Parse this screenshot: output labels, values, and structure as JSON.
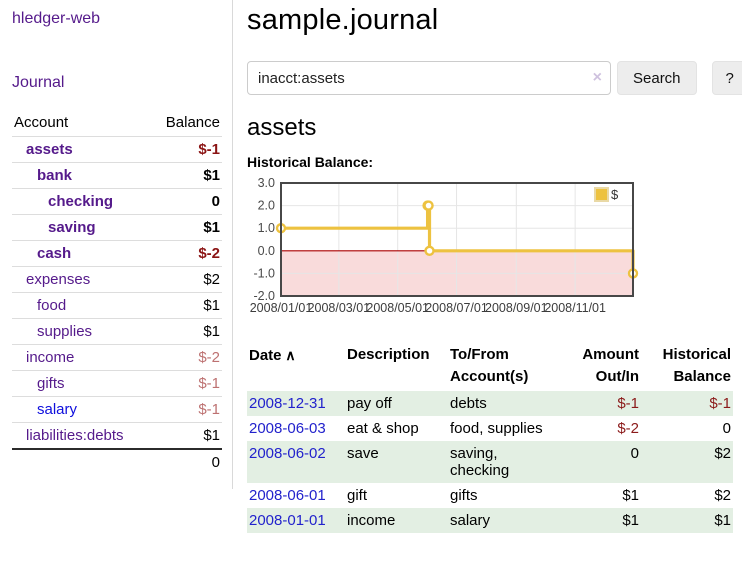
{
  "app": {
    "title": "hledger-web"
  },
  "sidebar": {
    "journal_link": "Journal",
    "accounts_table": {
      "account_header": "Account",
      "balance_header": "Balance",
      "rows": [
        {
          "name": "assets",
          "indent": 0,
          "bold": true,
          "blue": false,
          "balance": "$-1",
          "neg": "strong"
        },
        {
          "name": "bank",
          "indent": 1,
          "bold": true,
          "blue": false,
          "balance": "$1",
          "neg": "none"
        },
        {
          "name": "checking",
          "indent": 2,
          "bold": true,
          "blue": false,
          "balance": "0",
          "neg": "none"
        },
        {
          "name": "saving",
          "indent": 2,
          "bold": true,
          "blue": false,
          "balance": "$1",
          "neg": "none"
        },
        {
          "name": "cash",
          "indent": 1,
          "bold": true,
          "blue": false,
          "balance": "$-2",
          "neg": "strong"
        },
        {
          "name": "expenses",
          "indent": 0,
          "bold": false,
          "blue": false,
          "balance": "$2",
          "neg": "none"
        },
        {
          "name": "food",
          "indent": 1,
          "bold": false,
          "blue": false,
          "balance": "$1",
          "neg": "none"
        },
        {
          "name": "supplies",
          "indent": 1,
          "bold": false,
          "blue": false,
          "balance": "$1",
          "neg": "none"
        },
        {
          "name": "income",
          "indent": 0,
          "bold": false,
          "blue": false,
          "balance": "$-2",
          "neg": "light"
        },
        {
          "name": "gifts",
          "indent": 1,
          "bold": false,
          "blue": false,
          "balance": "$-1",
          "neg": "light"
        },
        {
          "name": "salary",
          "indent": 1,
          "bold": false,
          "blue": true,
          "balance": "$-1",
          "neg": "light"
        },
        {
          "name": "liabilities:debts",
          "indent": 0,
          "bold": false,
          "blue": false,
          "balance": "$1",
          "neg": "none"
        }
      ],
      "total": "0"
    }
  },
  "header": {
    "title": "sample.journal"
  },
  "search": {
    "value": "inacct:assets",
    "clear_icon": "×",
    "button_label": "Search",
    "help_label": "?"
  },
  "account_page": {
    "title": "assets",
    "section_label": "Historical Balance:"
  },
  "chart_data": {
    "type": "line",
    "title": "Historical Balance",
    "legend": [
      {
        "label": "$",
        "color": "#edc240"
      }
    ],
    "legend_position": "top-right",
    "grid": true,
    "ylim": [
      -2,
      3
    ],
    "y_ticks": [
      "3.0",
      "2.0",
      "1.0",
      "0.0",
      "-1.0",
      "-2.0"
    ],
    "y_tick_values": [
      3,
      2,
      1,
      0,
      -1,
      -2
    ],
    "x_range_days": [
      0,
      365
    ],
    "x_ticks": [
      {
        "label": "2008/01/01",
        "day": 0
      },
      {
        "label": "2008/03/01",
        "day": 60
      },
      {
        "label": "2008/05/01",
        "day": 121
      },
      {
        "label": "2008/07/01",
        "day": 182
      },
      {
        "label": "2008/09/01",
        "day": 244
      },
      {
        "label": "2008/11/01",
        "day": 305
      }
    ],
    "series": [
      {
        "name": "$",
        "color": "#edc240",
        "step": true,
        "points": [
          {
            "date": "2008-01-01",
            "day": 0,
            "value": 1
          },
          {
            "date": "2008-06-01",
            "day": 152,
            "value": 2
          },
          {
            "date": "2008-06-02",
            "day": 153,
            "value": 2
          },
          {
            "date": "2008-06-03",
            "day": 154,
            "value": 0
          },
          {
            "date": "2008-12-31",
            "day": 365,
            "value": -1
          }
        ]
      }
    ],
    "negative_region_fill": "#f9dbdb",
    "zero_line_color": "#aa0000",
    "border_color": "#474747",
    "grid_color": "#e6e6e6",
    "tick_text_color": "#4a4a4a"
  },
  "register": {
    "columns": [
      {
        "line1": "Date",
        "line2": "",
        "align": "left",
        "sortable": true,
        "sort_icon": "∧"
      },
      {
        "line1": "Description",
        "line2": "",
        "align": "left"
      },
      {
        "line1": "To/From",
        "line2": "Account(s)",
        "align": "left"
      },
      {
        "line1": "Amount",
        "line2": "Out/In",
        "align": "right"
      },
      {
        "line1": "Historical",
        "line2": "Balance",
        "align": "right"
      }
    ],
    "rows": [
      {
        "date": "2008-12-31",
        "description": "pay off",
        "accounts": "debts",
        "amount": "$-1",
        "amount_neg": true,
        "balance": "$-1",
        "balance_neg": true
      },
      {
        "date": "2008-06-03",
        "description": "eat & shop",
        "accounts": "food, supplies",
        "amount": "$-2",
        "amount_neg": true,
        "balance": "0",
        "balance_neg": false
      },
      {
        "date": "2008-06-02",
        "description": "save",
        "accounts": "saving, checking",
        "amount": "0",
        "amount_neg": false,
        "balance": "$2",
        "balance_neg": false
      },
      {
        "date": "2008-06-01",
        "description": "gift",
        "accounts": "gifts",
        "amount": "$1",
        "amount_neg": false,
        "balance": "$2",
        "balance_neg": false
      },
      {
        "date": "2008-01-01",
        "description": "income",
        "accounts": "salary",
        "amount": "$1",
        "amount_neg": false,
        "balance": "$1",
        "balance_neg": false
      }
    ]
  }
}
